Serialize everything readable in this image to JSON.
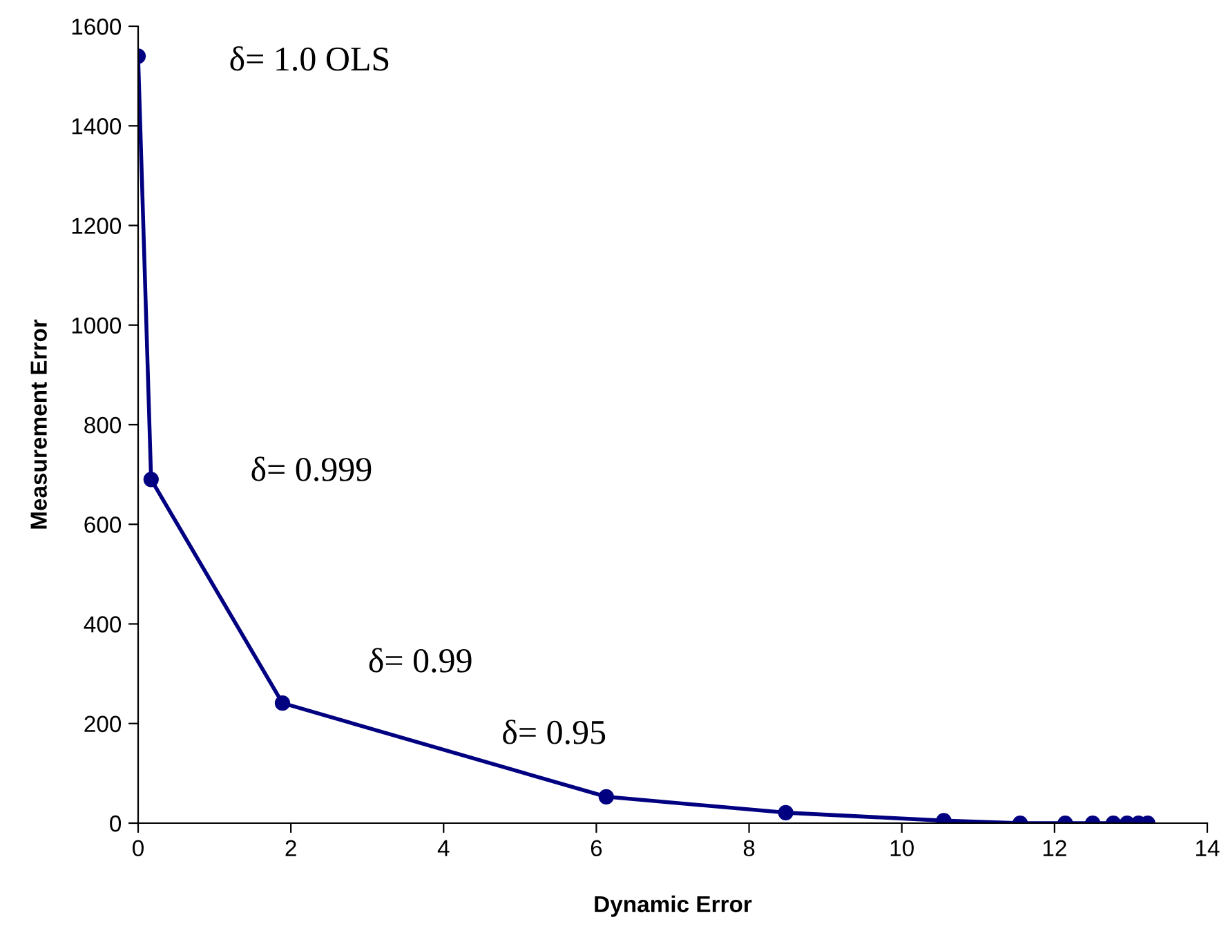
{
  "chart_data": {
    "type": "line",
    "xlabel": "Dynamic Error",
    "ylabel": "Measurement Error",
    "series": [
      {
        "color": "#000080",
        "x": [
          0,
          0.17,
          1.89,
          6.13,
          8.48,
          10.55,
          11.55,
          12.14,
          12.5,
          12.77,
          12.95,
          13.1,
          13.22
        ],
        "values": [
          1540,
          690,
          241,
          53,
          21,
          5,
          0,
          0,
          0,
          0,
          0,
          0,
          0
        ]
      }
    ],
    "annotations": [
      "δ= 1.0 OLS",
      "δ= 0.999",
      "δ= 0.99",
      "δ= 0.95"
    ],
    "xlim": [
      0,
      14
    ],
    "xticks": [
      0,
      2,
      4,
      6,
      8,
      10,
      12,
      14
    ],
    "ylim": [
      0,
      1600
    ],
    "yticks": [
      0,
      200,
      400,
      600,
      800,
      1000,
      1200,
      1400,
      1600
    ],
    "grid": false,
    "legend": false,
    "marker": "circle",
    "line_style": "solid"
  }
}
